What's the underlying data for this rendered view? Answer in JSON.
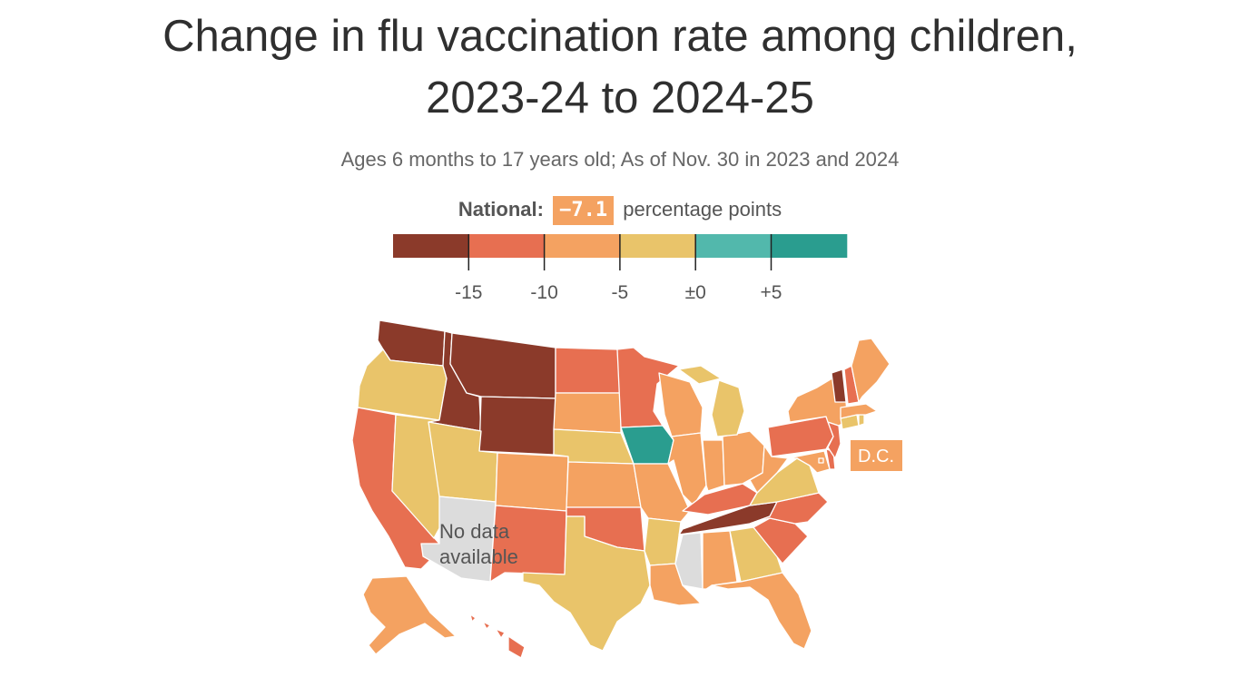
{
  "title_line1": "Change in flu vaccination rate among children,",
  "title_line2": "2023-24 to 2024-25",
  "subtitle": "Ages 6 months to 17 years old; As of Nov. 30 in 2023 and 2024",
  "national": {
    "label": "National:",
    "value": "−7.1",
    "unit": "percentage points"
  },
  "colors": {
    "lt_m15": "#8b3a2a",
    "m15_m10": "#e76f51",
    "m10_m5": "#f4a261",
    "m5_0": "#e9c46a",
    "p0_p5": "#52b8ac",
    "gt_p5": "#2a9d8f",
    "no_data": "#dcdcdc"
  },
  "legend": {
    "bins": [
      "lt_m15",
      "m15_m10",
      "m10_m5",
      "m5_0",
      "p0_p5",
      "gt_p5"
    ],
    "ticks": [
      "-15",
      "-10",
      "-5",
      "±0",
      "+5"
    ]
  },
  "annotations": {
    "no_data": "No data available",
    "dc": "D.C."
  },
  "chart_data": {
    "type": "map",
    "title": "Change in flu vaccination rate among children, 2023-24 to 2024-25",
    "subtitle": "Ages 6 months to 17 years old; As of Nov. 30 in 2023 and 2024",
    "national_change": -7.1,
    "unit": "percentage points",
    "scale_breaks": [
      -15,
      -10,
      -5,
      0,
      5
    ],
    "states": {
      "WA": "lt_m15",
      "ID": "lt_m15",
      "MT": "lt_m15",
      "WY": "lt_m15",
      "TN": "lt_m15",
      "VT": "lt_m15",
      "CA": "m15_m10",
      "NM": "m15_m10",
      "OK": "m15_m10",
      "ND": "m15_m10",
      "MN": "m15_m10",
      "KY": "m15_m10",
      "NC": "m15_m10",
      "SC": "m15_m10",
      "PA": "m15_m10",
      "NJ": "m15_m10",
      "DE": "m15_m10",
      "NH": "m15_m10",
      "HI": "m15_m10",
      "CO": "m10_m5",
      "SD": "m10_m5",
      "KS": "m10_m5",
      "MO": "m10_m5",
      "WI": "m10_m5",
      "IL": "m10_m5",
      "IN": "m10_m5",
      "OH": "m10_m5",
      "WV": "m10_m5",
      "AL": "m10_m5",
      "LA": "m10_m5",
      "FL": "m10_m5",
      "NY": "m10_m5",
      "ME": "m10_m5",
      "MD": "m10_m5",
      "MA": "m10_m5",
      "AK": "m10_m5",
      "DC": "m10_m5",
      "OR": "m5_0",
      "NV": "m5_0",
      "UT": "m5_0",
      "NE": "m5_0",
      "TX": "m5_0",
      "AR": "m5_0",
      "MI": "m5_0",
      "GA": "m5_0",
      "VA": "m5_0",
      "CT": "m5_0",
      "RI": "m5_0",
      "IA": "gt_p5",
      "AZ": "no_data",
      "MS": "no_data"
    }
  }
}
